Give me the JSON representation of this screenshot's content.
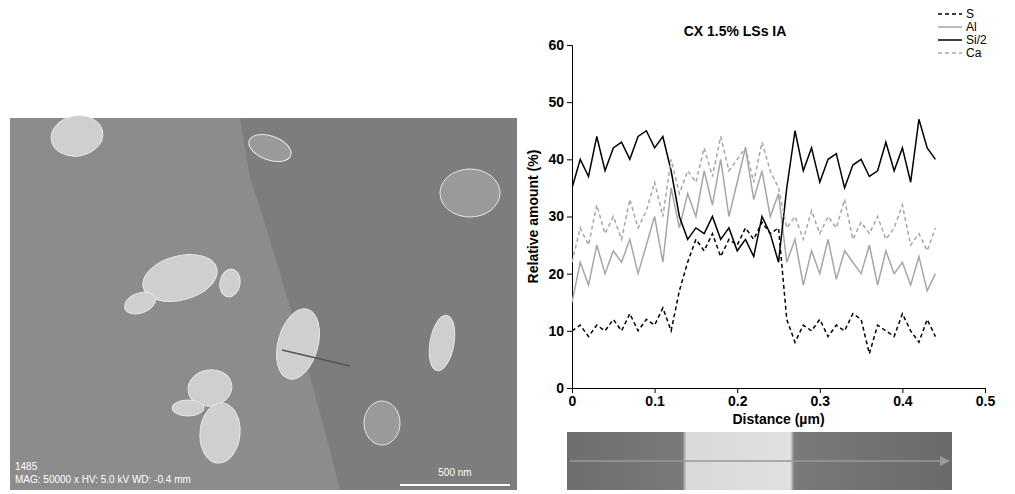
{
  "chart_data": {
    "type": "line",
    "title": "CX 1.5% LSs IA",
    "x_label": "Distance (µm)",
    "y_label": "Relative amount (%)",
    "x": [
      0,
      0.01,
      0.02,
      0.03,
      0.04,
      0.05,
      0.06,
      0.07,
      0.08,
      0.09,
      0.1,
      0.11,
      0.12,
      0.13,
      0.14,
      0.15,
      0.16,
      0.17,
      0.18,
      0.19,
      0.2,
      0.21,
      0.22,
      0.23,
      0.24,
      0.25,
      0.26,
      0.27,
      0.28,
      0.29,
      0.3,
      0.31,
      0.32,
      0.33,
      0.34,
      0.35,
      0.36,
      0.37,
      0.38,
      0.39,
      0.4,
      0.41,
      0.42,
      0.43,
      0.44
    ],
    "series": [
      {
        "name": "S",
        "color": "#000000",
        "line_style": "dashed",
        "values": [
          10,
          11,
          9,
          11,
          10,
          12,
          10,
          13,
          10,
          12,
          11,
          14,
          10,
          17,
          22,
          26,
          24,
          27,
          23,
          26,
          25,
          28,
          26,
          29,
          27,
          28,
          12,
          8,
          11,
          10,
          12,
          9,
          11,
          10,
          13,
          12,
          6,
          11,
          10,
          9,
          13,
          10,
          8,
          12,
          9
        ]
      },
      {
        "name": "Al",
        "color": "#a6a6a6",
        "line_style": "solid",
        "values": [
          15,
          22,
          18,
          25,
          20,
          24,
          22,
          26,
          20,
          25,
          30,
          22,
          35,
          28,
          34,
          30,
          38,
          32,
          40,
          30,
          36,
          42,
          33,
          38,
          30,
          34,
          22,
          26,
          18,
          24,
          20,
          26,
          19,
          24,
          22,
          20,
          25,
          18,
          24,
          20,
          22,
          18,
          23,
          17,
          20
        ]
      },
      {
        "name": "Si/2",
        "color": "#000000",
        "line_style": "solid",
        "values": [
          35,
          40,
          37,
          44,
          38,
          42,
          43,
          40,
          44,
          45,
          42,
          44,
          38,
          30,
          26,
          28,
          27,
          30,
          26,
          28,
          24,
          26,
          23,
          30,
          27,
          22,
          35,
          45,
          38,
          42,
          36,
          40,
          41,
          35,
          39,
          40,
          37,
          38,
          43,
          38,
          42,
          36,
          47,
          42,
          40
        ]
      },
      {
        "name": "Ca",
        "color": "#a6a6a6",
        "line_style": "dashed",
        "values": [
          22,
          28,
          25,
          32,
          27,
          30,
          26,
          33,
          28,
          31,
          36,
          30,
          40,
          34,
          38,
          36,
          42,
          37,
          44,
          38,
          40,
          42,
          36,
          43,
          38,
          35,
          28,
          30,
          26,
          31,
          27,
          30,
          28,
          33,
          26,
          29,
          27,
          30,
          26,
          28,
          32,
          25,
          27,
          24,
          28
        ]
      }
    ],
    "xlim": [
      0,
      0.5
    ],
    "xticks": [
      0,
      0.1,
      0.2,
      0.3,
      0.4,
      0.5
    ],
    "ylim": [
      0,
      60
    ],
    "yticks": [
      0,
      10,
      20,
      30,
      40,
      50,
      60
    ],
    "grid": false,
    "legend": "top-right"
  },
  "micrograph": {
    "image_id": "1485",
    "info": "MAG: 50000 x HV: 5.0 kV WD: -0.4 mm",
    "scale_bar": "500 nm"
  }
}
